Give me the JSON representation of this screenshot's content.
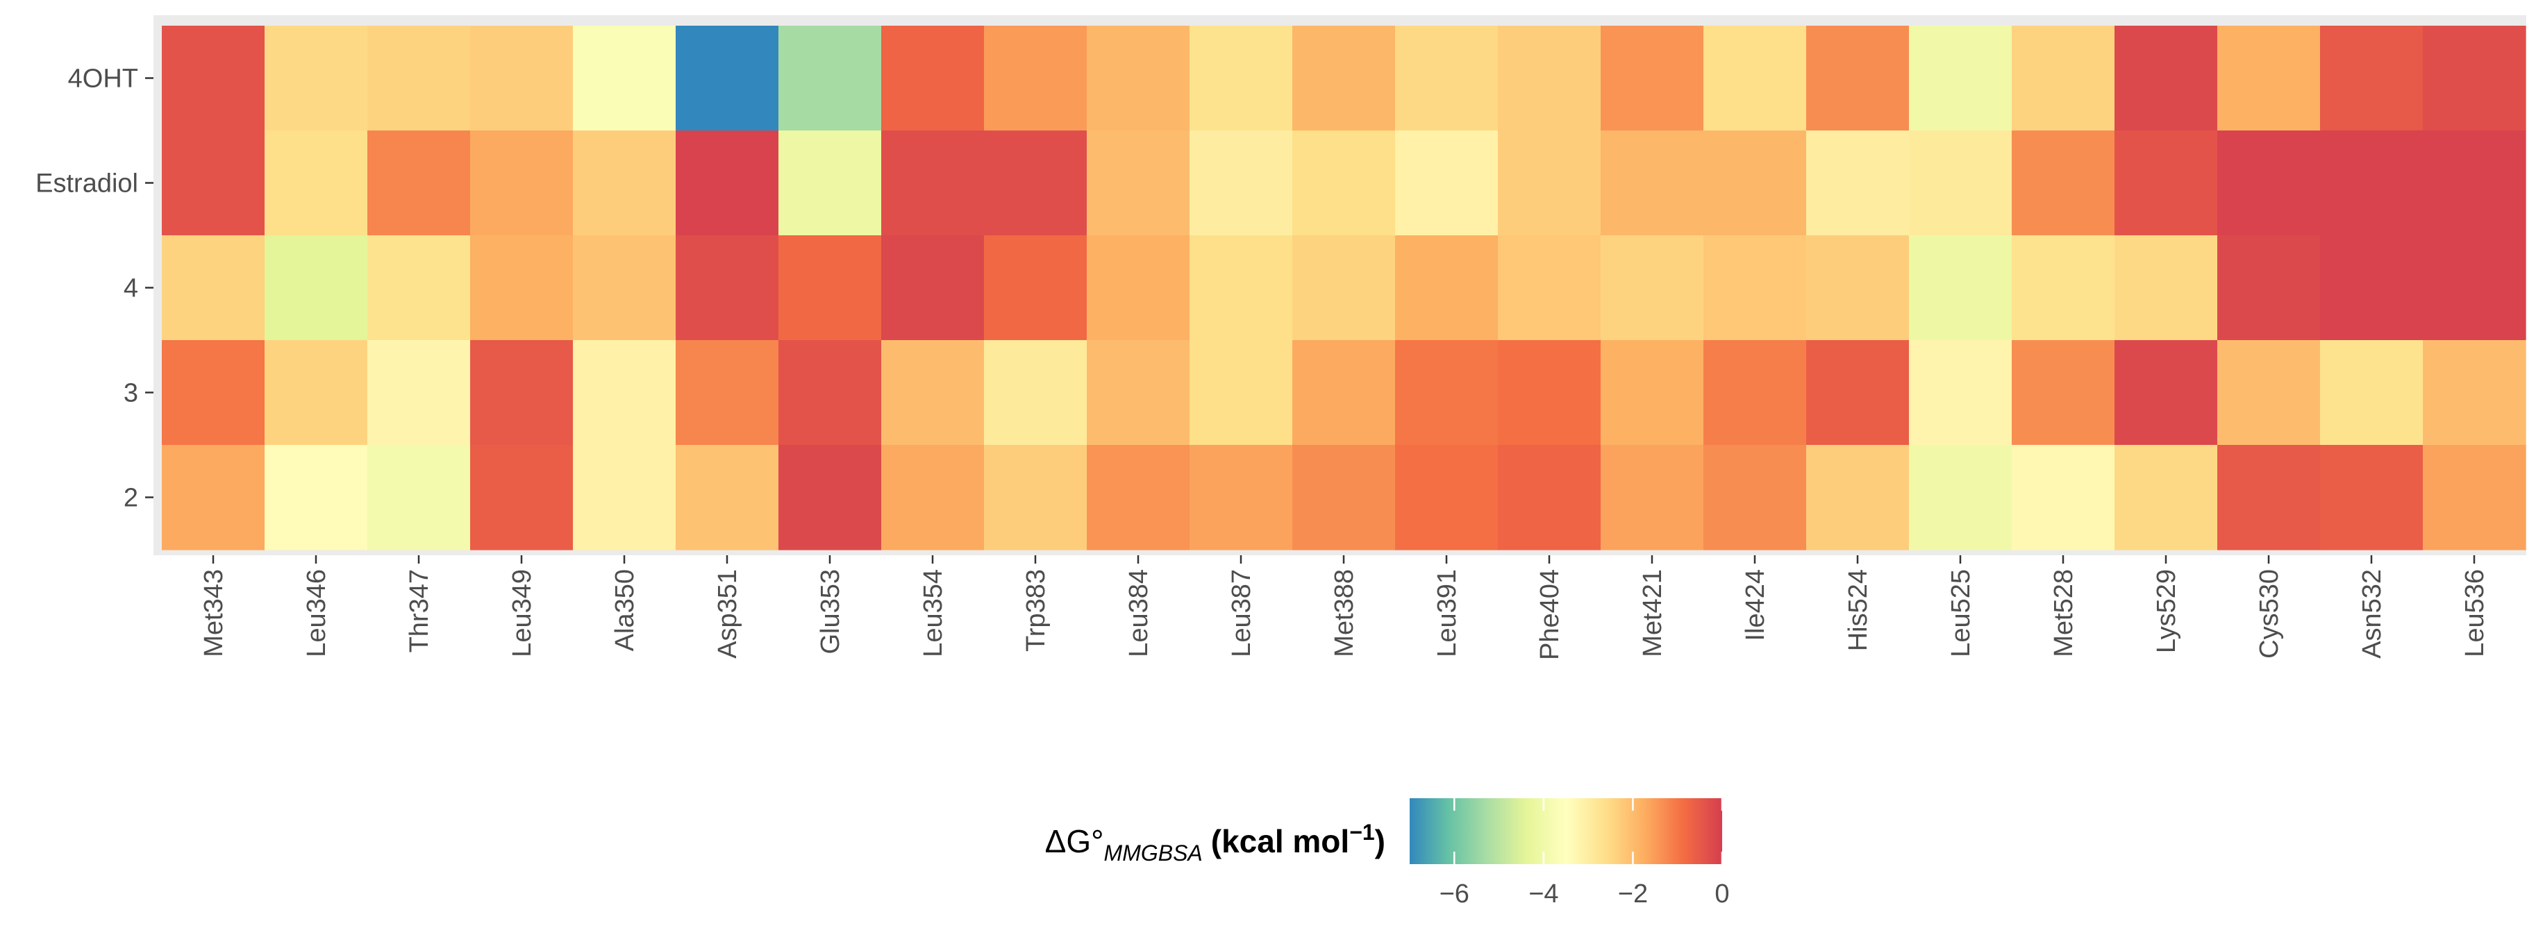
{
  "chart_data": {
    "type": "heatmap",
    "title": "",
    "xlabel": "",
    "ylabel": "",
    "rows": [
      "4OHT",
      "Estradiol",
      "4",
      "3",
      "2"
    ],
    "columns": [
      "Met343",
      "Leu346",
      "Thr347",
      "Leu349",
      "Ala350",
      "Asp351",
      "Glu353",
      "Leu354",
      "Trp383",
      "Leu384",
      "Leu387",
      "Met388",
      "Leu391",
      "Phe404",
      "Met421",
      "Ile424",
      "His524",
      "Leu525",
      "Met528",
      "Lys529",
      "Cys530",
      "Asn532",
      "Leu536"
    ],
    "values": [
      [
        -0.4,
        -2.5,
        -2.4,
        -2.3,
        -3.7,
        -7.0,
        -5.3,
        -0.7,
        -1.5,
        -1.9,
        -2.7,
        -1.9,
        -2.5,
        -2.3,
        -1.4,
        -2.6,
        -1.3,
        -4.0,
        -2.4,
        -0.2,
        -1.8,
        -0.5,
        -0.3
      ],
      [
        -0.4,
        -2.6,
        -1.2,
        -1.7,
        -2.3,
        -0.1,
        -4.1,
        -0.3,
        -0.3,
        -2.0,
        -3.0,
        -2.6,
        -3.1,
        -2.3,
        -1.9,
        -1.9,
        -3.0,
        -2.9,
        -1.3,
        -0.4,
        -0.1,
        -0.1,
        -0.1
      ],
      [
        -2.4,
        -4.4,
        -2.7,
        -1.8,
        -2.1,
        -0.3,
        -0.8,
        -0.2,
        -0.8,
        -1.8,
        -2.6,
        -2.4,
        -1.8,
        -2.2,
        -2.4,
        -2.2,
        -2.3,
        -4.1,
        -2.7,
        -2.5,
        -0.2,
        -0.1,
        -0.1
      ],
      [
        -1.0,
        -2.4,
        -3.2,
        -0.5,
        -3.1,
        -1.2,
        -0.4,
        -2.0,
        -2.9,
        -2.0,
        -2.6,
        -1.7,
        -1.0,
        -0.9,
        -1.8,
        -1.1,
        -0.6,
        -3.2,
        -1.3,
        -0.2,
        -2.0,
        -2.7,
        -2.0
      ],
      [
        -1.7,
        -3.4,
        -3.9,
        -0.6,
        -3.1,
        -2.1,
        -0.2,
        -1.7,
        -2.3,
        -1.4,
        -1.6,
        -1.3,
        -0.9,
        -0.7,
        -1.6,
        -1.3,
        -2.3,
        -4.0,
        -3.3,
        -2.5,
        -0.5,
        -0.6,
        -1.6
      ]
    ],
    "colorbar": {
      "label_prefix": "ΔG°",
      "label_subscript": "MMGBSA",
      "label_units": "(kcal mol",
      "label_superscript": "−1",
      "label_close": ")",
      "range": [
        -7,
        0
      ],
      "ticks": [
        "−6",
        "−4",
        "−2",
        "0"
      ],
      "tick_values": [
        -6,
        -4,
        -2,
        0
      ]
    },
    "colors": {
      "panel_background": "#ebebeb",
      "palette": [
        "#3288bd",
        "#66c2a5",
        "#abdda4",
        "#e6f598",
        "#ffffbf",
        "#fee08b",
        "#fdae61",
        "#f46d43",
        "#d53e4f"
      ]
    }
  }
}
